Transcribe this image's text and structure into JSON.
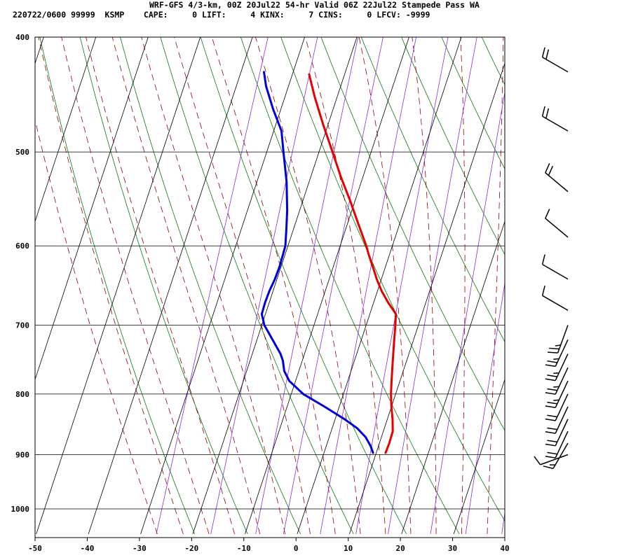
{
  "header": {
    "title": "WRF-GFS 4/3-km, 00Z 20Jul22 54-hr Valid 06Z 22Jul22 Stampede Pass WA",
    "stats_line": "220722/0600 99999  KSMP    CAPE:     0 LIFT:     4 KINX:     7 CINS:     0 LFCV: -9999"
  },
  "chart_data": {
    "type": "line",
    "title": "WRF-GFS 4/3-km, 00Z 20Jul22 54-hr Valid 06Z 22Jul22 Stampede Pass WA",
    "xlabel": "",
    "ylabel": "",
    "xlim": [
      -50,
      40
    ],
    "ylim": [
      1040,
      400
    ],
    "y_scale": "log",
    "grid": true,
    "x_ticks": [
      -50,
      -40,
      -30,
      -20,
      -10,
      0,
      10,
      20,
      30,
      40
    ],
    "y_ticks": [
      400,
      500,
      600,
      700,
      800,
      900,
      1000
    ],
    "skew_degrees_per_decade": 75,
    "background_lines": {
      "isotherms_color": "#000000",
      "dry_adiabats_color": "#0a7a0a",
      "moist_adiabats_color": "#990000",
      "mixing_ratio_color": "#8a2be2"
    },
    "series": [
      {
        "color": "#e60000",
        "points": [
          [
            897,
            11.8
          ],
          [
            880,
            11.9
          ],
          [
            860,
            11.8
          ],
          [
            840,
            11.0
          ],
          [
            820,
            10.0
          ],
          [
            800,
            9.1
          ],
          [
            780,
            8.4
          ],
          [
            760,
            7.7
          ],
          [
            740,
            7.0
          ],
          [
            720,
            6.3
          ],
          [
            700,
            5.6
          ],
          [
            685,
            5.0
          ],
          [
            670,
            2.8
          ],
          [
            655,
            0.8
          ],
          [
            640,
            -0.9
          ],
          [
            625,
            -2.4
          ],
          [
            610,
            -4.0
          ],
          [
            600,
            -5.0
          ],
          [
            575,
            -7.9
          ],
          [
            550,
            -10.9
          ],
          [
            525,
            -14.2
          ],
          [
            500,
            -17.4
          ],
          [
            475,
            -20.8
          ],
          [
            450,
            -24.2
          ],
          [
            430,
            -26.8
          ]
        ]
      },
      {
        "color": "#0000dd",
        "points": [
          [
            897,
            9.4
          ],
          [
            885,
            8.5
          ],
          [
            870,
            7.0
          ],
          [
            855,
            4.8
          ],
          [
            840,
            1.8
          ],
          [
            820,
            -2.8
          ],
          [
            800,
            -7.7
          ],
          [
            780,
            -11.2
          ],
          [
            765,
            -12.8
          ],
          [
            750,
            -13.7
          ],
          [
            740,
            -14.6
          ],
          [
            720,
            -17.0
          ],
          [
            700,
            -19.5
          ],
          [
            685,
            -20.7
          ],
          [
            670,
            -20.8
          ],
          [
            655,
            -20.7
          ],
          [
            640,
            -20.4
          ],
          [
            625,
            -20.3
          ],
          [
            610,
            -20.4
          ],
          [
            600,
            -20.5
          ],
          [
            580,
            -21.4
          ],
          [
            560,
            -22.4
          ],
          [
            530,
            -24.3
          ],
          [
            500,
            -26.8
          ],
          [
            480,
            -28.5
          ],
          [
            460,
            -31.5
          ],
          [
            440,
            -34.3
          ],
          [
            428,
            -35.6
          ]
        ]
      }
    ],
    "wind_barbs": {
      "levels_hPa": [
        428,
        480,
        540,
        590,
        640,
        680,
        700,
        720,
        740,
        760,
        780,
        800,
        820,
        840,
        860,
        880,
        900
      ],
      "speed_kt": [
        20,
        20,
        20,
        10,
        10,
        10,
        25,
        25,
        25,
        25,
        25,
        20,
        20,
        20,
        20,
        15,
        10
      ],
      "dir_deg": [
        300,
        300,
        310,
        310,
        300,
        300,
        200,
        205,
        205,
        205,
        205,
        205,
        205,
        205,
        205,
        210,
        250
      ]
    }
  }
}
